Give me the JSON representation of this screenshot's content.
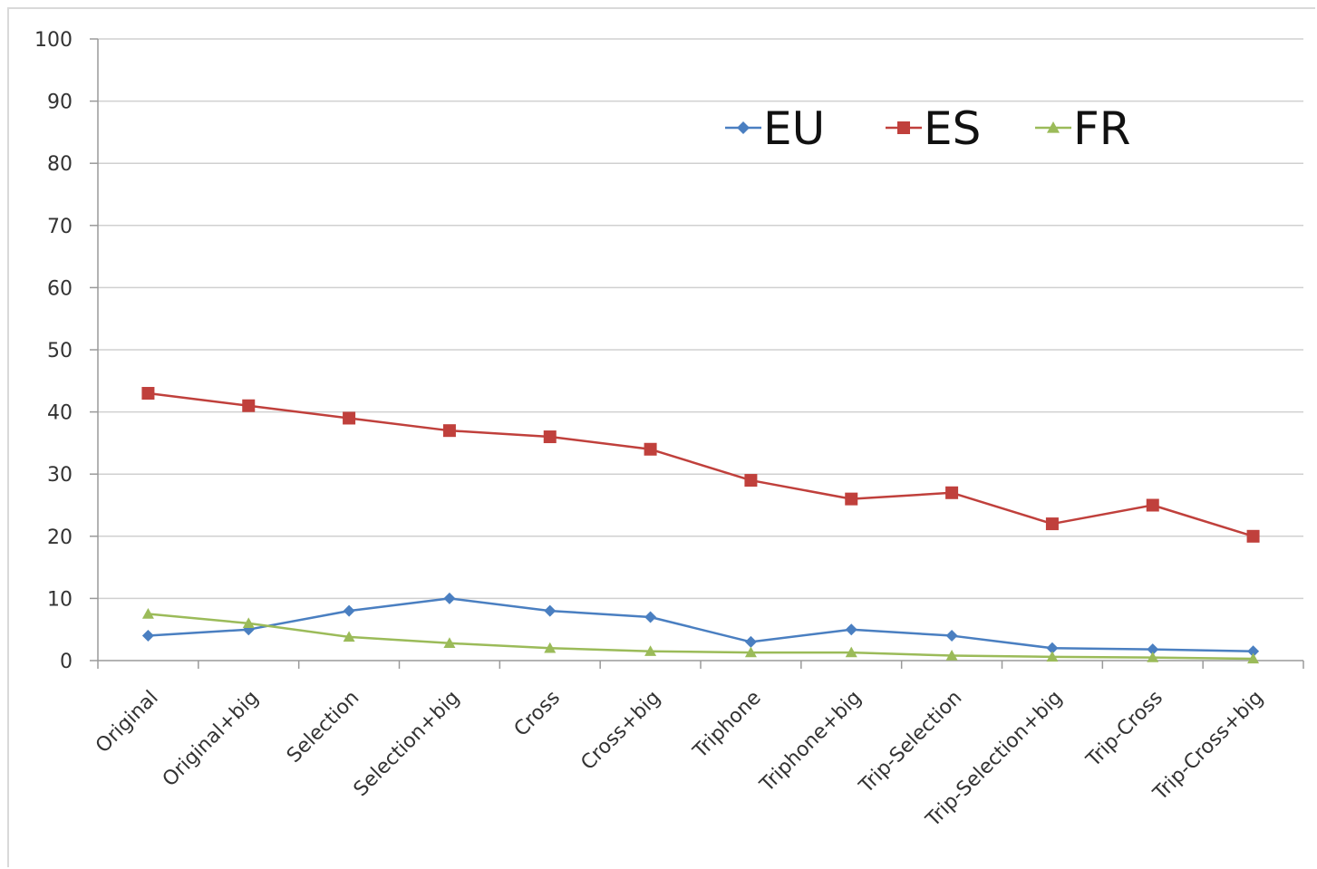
{
  "chart_data": {
    "type": "line",
    "title": "",
    "xlabel": "",
    "ylabel": "",
    "ylim": [
      0,
      100
    ],
    "yticks": [
      0,
      10,
      20,
      30,
      40,
      50,
      60,
      70,
      80,
      90,
      100
    ],
    "grid": true,
    "legend_position": "top-right",
    "categories": [
      "Original",
      "Original+big",
      "Selection",
      "Selection+big",
      "Cross",
      "Cross+big",
      "Triphone",
      "Triphone+big",
      "Trip-Selection",
      "Trip-Selection+big",
      "Trip-Cross",
      "Trip-Cross+big"
    ],
    "series": [
      {
        "name": "EU",
        "color": "#4a7fc1",
        "marker": "diamond",
        "values": [
          4,
          5,
          8,
          10,
          8,
          7,
          3,
          5,
          4,
          2,
          1.8,
          1.5
        ]
      },
      {
        "name": "ES",
        "color": "#c0403c",
        "marker": "square",
        "values": [
          43,
          41,
          39,
          37,
          36,
          34,
          29,
          26,
          27,
          22,
          25,
          20
        ]
      },
      {
        "name": "FR",
        "color": "#9bbb59",
        "marker": "triangle",
        "values": [
          7.5,
          6,
          3.8,
          2.8,
          2,
          1.5,
          1.3,
          1.3,
          0.8,
          0.6,
          0.5,
          0.3
        ]
      }
    ]
  }
}
